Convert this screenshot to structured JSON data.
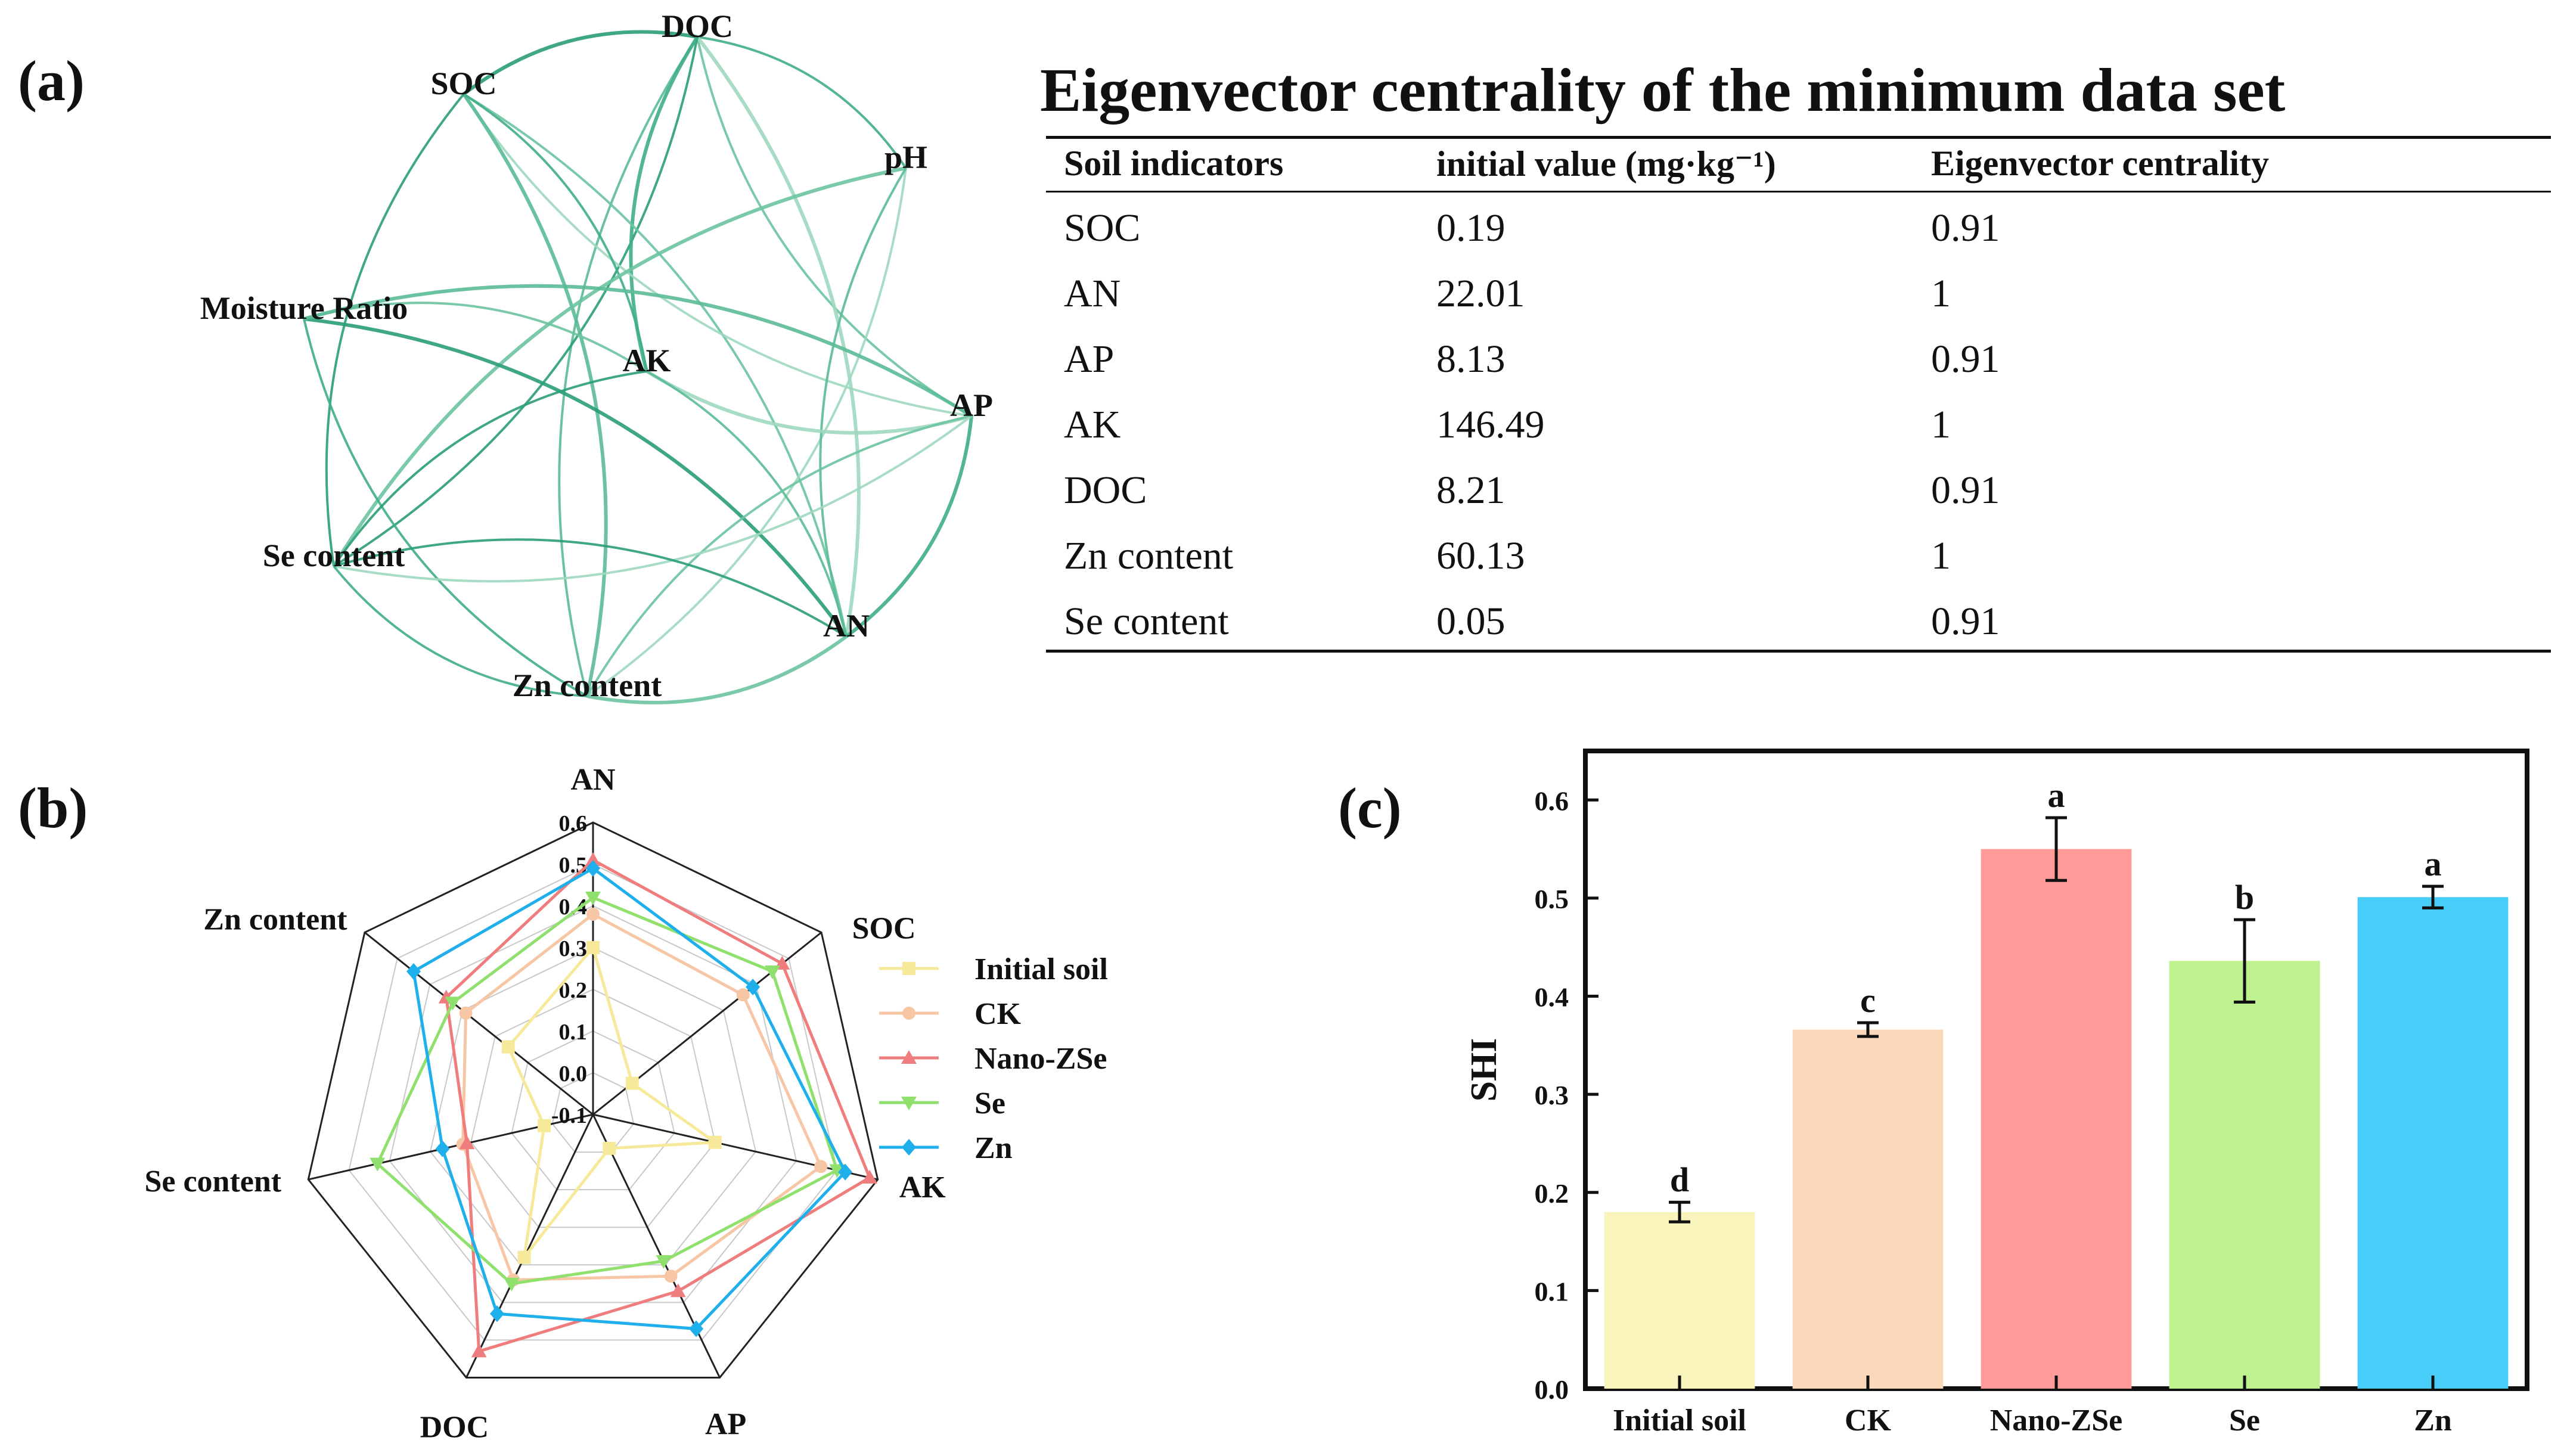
{
  "panels": {
    "a": "(a)",
    "b": "(b)",
    "c": "(c)"
  },
  "network": {
    "nodes": [
      "DOC",
      "SOC",
      "pH",
      "Moisture Ratio",
      "AK",
      "AP",
      "Se content",
      "AN",
      "Zn content"
    ],
    "edges": [
      [
        "DOC",
        "SOC"
      ],
      [
        "DOC",
        "pH"
      ],
      [
        "DOC",
        "AP"
      ],
      [
        "DOC",
        "AN"
      ],
      [
        "DOC",
        "Zn content"
      ],
      [
        "DOC",
        "Se content"
      ],
      [
        "DOC",
        "AK"
      ],
      [
        "SOC",
        "AN"
      ],
      [
        "SOC",
        "AP"
      ],
      [
        "SOC",
        "Zn content"
      ],
      [
        "SOC",
        "Se content"
      ],
      [
        "SOC",
        "AK"
      ],
      [
        "pH",
        "Se content"
      ],
      [
        "pH",
        "Zn content"
      ],
      [
        "pH",
        "AN"
      ],
      [
        "Moisture Ratio",
        "AN"
      ],
      [
        "Moisture Ratio",
        "Zn content"
      ],
      [
        "Moisture Ratio",
        "AK"
      ],
      [
        "AK",
        "AP"
      ],
      [
        "AK",
        "AN"
      ],
      [
        "AK",
        "Se content"
      ],
      [
        "AP",
        "AN"
      ],
      [
        "AP",
        "Zn content"
      ],
      [
        "AP",
        "Se content"
      ],
      [
        "AP",
        "Moisture Ratio"
      ],
      [
        "Se content",
        "AN"
      ],
      [
        "Se content",
        "Zn content"
      ],
      [
        "AN",
        "Zn content"
      ]
    ]
  },
  "table": {
    "title": "Eigenvector centrality of the minimum data set",
    "headers": [
      "Soil indicators",
      "initial value (mg·kg⁻¹)",
      "Eigenvector centrality"
    ],
    "rows": [
      [
        "SOC",
        "0.19",
        "0.91"
      ],
      [
        "AN",
        "22.01",
        "1"
      ],
      [
        "AP",
        "8.13",
        "0.91"
      ],
      [
        "AK",
        "146.49",
        "1"
      ],
      [
        "DOC",
        "8.21",
        "0.91"
      ],
      [
        "Zn content",
        "60.13",
        "1"
      ],
      [
        "Se content",
        "0.05",
        "0.91"
      ]
    ]
  },
  "chart_data": [
    {
      "type": "radar",
      "axes": [
        "AN",
        "SOC",
        "AK",
        "AP",
        "DOC",
        "Se content",
        "Zn content"
      ],
      "scale_ticks": [
        "0.6",
        "0.5",
        "0.4",
        "0.3",
        "0.2",
        "0.1",
        "0.0",
        "-0.1"
      ],
      "range": [
        -0.1,
        0.6
      ],
      "series": [
        {
          "name": "Initial soil",
          "color": "#f6e99a",
          "marker": "square",
          "values": [
            0.3,
            0.02,
            0.2,
            -0.01,
            0.28,
            0.02,
            0.16
          ]
        },
        {
          "name": "CK",
          "color": "#f7c6a4",
          "marker": "circle",
          "values": [
            0.38,
            0.36,
            0.46,
            0.33,
            0.34,
            0.22,
            0.29
          ]
        },
        {
          "name": "Nano-ZSe",
          "color": "#ef7d7d",
          "marker": "triangle-up",
          "values": [
            0.51,
            0.48,
            0.58,
            0.37,
            0.53,
            0.21,
            0.35
          ]
        },
        {
          "name": "Se",
          "color": "#8fe06c",
          "marker": "triangle-down",
          "values": [
            0.42,
            0.45,
            0.5,
            0.29,
            0.35,
            0.43,
            0.33
          ]
        },
        {
          "name": "Zn",
          "color": "#1fb0ec",
          "marker": "diamond",
          "values": [
            0.49,
            0.39,
            0.52,
            0.47,
            0.43,
            0.27,
            0.45
          ]
        }
      ]
    },
    {
      "type": "bar",
      "categories": [
        "Initial soil",
        "CK",
        "Nano-ZSe",
        "Se",
        "Zn"
      ],
      "values": [
        0.18,
        0.366,
        0.55,
        0.436,
        0.501
      ],
      "errors": [
        0.01,
        0.007,
        0.032,
        0.042,
        0.011
      ],
      "letters": [
        "d",
        "c",
        "a",
        "b",
        "a"
      ],
      "colors": [
        "#f8f4bb",
        "#fcd8bb",
        "#ff9b98",
        "#bdf28e",
        "#47cdf7"
      ],
      "ylabel": "SHI",
      "ylim": [
        0.0,
        0.65
      ],
      "yticks": [
        "0.0",
        "0.1",
        "0.2",
        "0.3",
        "0.4",
        "0.5",
        "0.6"
      ]
    }
  ]
}
